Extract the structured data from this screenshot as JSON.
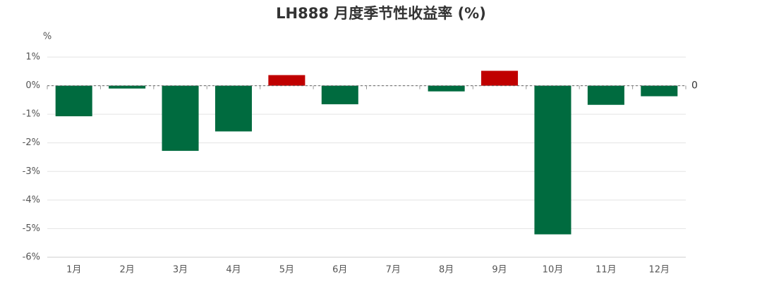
{
  "chart_data": {
    "type": "bar",
    "title": "LH888 月度季节性收益率 (%)",
    "y_axis_label": "%",
    "categories": [
      "1月",
      "2月",
      "3月",
      "4月",
      "5月",
      "6月",
      "7月",
      "8月",
      "9月",
      "10月",
      "11月",
      "12月"
    ],
    "values": [
      -1.07,
      -0.1,
      -2.28,
      -1.6,
      0.37,
      -0.65,
      0,
      -0.2,
      0.52,
      -5.2,
      -0.67,
      -0.37
    ],
    "positive_color": "#c00000",
    "negative_color": "#006b3f",
    "ylim": [
      -6,
      1
    ],
    "yticks": [
      {
        "value": 1,
        "label": "1%"
      },
      {
        "value": 0,
        "label": "0%"
      },
      {
        "value": -1,
        "label": "-1%"
      },
      {
        "value": -2,
        "label": "-2%"
      },
      {
        "value": -3,
        "label": "-3%"
      },
      {
        "value": -4,
        "label": "-4%"
      },
      {
        "value": -5,
        "label": "-5%"
      },
      {
        "value": -6,
        "label": "-6%"
      }
    ],
    "grid": true,
    "reference_line": 0
  }
}
